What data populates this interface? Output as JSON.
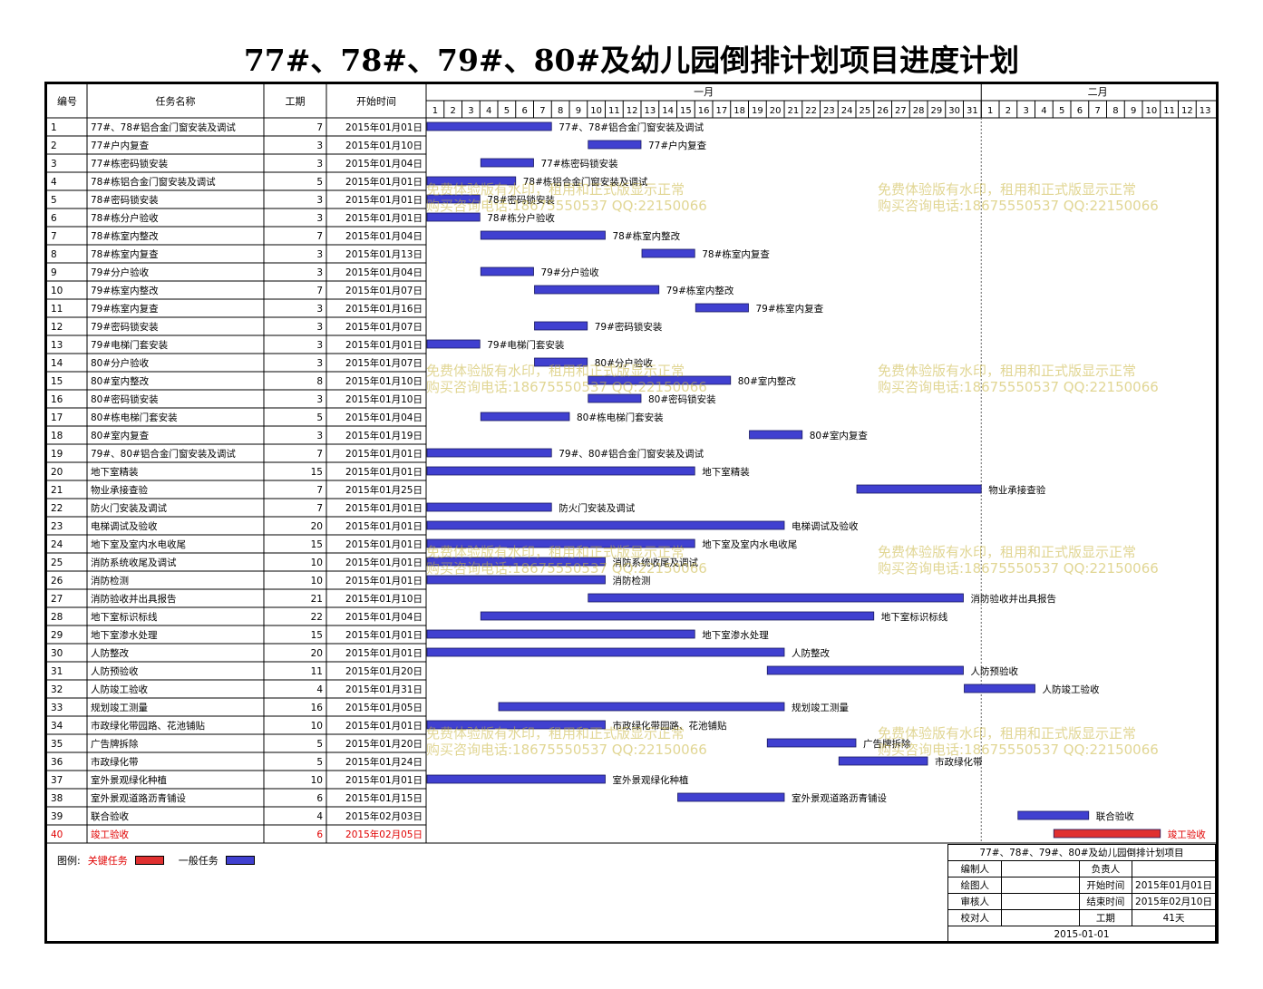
{
  "title": "77#、78#、79#、80#及幼儿园倒排计划项目进度计划",
  "header": {
    "col_id": "编号",
    "col_name": "任务名称",
    "col_dur": "工期",
    "col_start": "开始时间",
    "months": [
      "一月",
      "二月"
    ]
  },
  "legend": {
    "label": "图例:",
    "critical": "关键任务",
    "normal": "一般任务"
  },
  "colors": {
    "normal_bar": "#4040d0",
    "critical_bar": "#e03030",
    "critical_text": "#e00000"
  },
  "info": {
    "project": "77#、78#、79#、80#及幼儿园倒排计划项目",
    "editor_label": "编制人",
    "owner_label": "负责人",
    "drawer_label": "绘图人",
    "start_label": "开始时间",
    "start_value": "2015年01月01日",
    "reviewer_label": "审核人",
    "end_label": "结束时间",
    "end_value": "2015年02月10日",
    "checker_label": "校对人",
    "dur_label": "工期",
    "dur_value": "41天",
    "date": "2015-01-01"
  },
  "watermark": {
    "line1": "免费体验版有水印，租用和正式版显示正常",
    "line2": "购买咨询电话:18675550537 QQ:22150066"
  },
  "chart_data": {
    "type": "gantt",
    "x_axis": {
      "months": [
        {
          "name": "一月",
          "days": [
            1,
            2,
            3,
            4,
            5,
            6,
            7,
            8,
            9,
            10,
            11,
            12,
            13,
            14,
            15,
            16,
            17,
            18,
            19,
            20,
            21,
            22,
            23,
            24,
            25,
            26,
            27,
            28,
            29,
            30,
            31
          ]
        },
        {
          "name": "二月",
          "days": [
            1,
            2,
            3,
            4,
            5,
            6,
            7,
            8,
            9,
            10,
            11,
            12,
            13
          ]
        }
      ]
    },
    "tasks": [
      {
        "id": "1",
        "name": "77#、78#铝合金门窗安装及调试",
        "dur": 7,
        "start": "2015年01月01日",
        "day": 1,
        "critical": false
      },
      {
        "id": "2",
        "name": "77#户内复查",
        "dur": 3,
        "start": "2015年01月10日",
        "day": 10,
        "critical": false
      },
      {
        "id": "3",
        "name": "77#栋密码锁安装",
        "dur": 3,
        "start": "2015年01月04日",
        "day": 4,
        "critical": false
      },
      {
        "id": "4",
        "name": "78#栋铝合金门窗安装及调试",
        "dur": 5,
        "start": "2015年01月01日",
        "day": 1,
        "critical": false
      },
      {
        "id": "5",
        "name": "78#密码锁安装",
        "dur": 3,
        "start": "2015年01月01日",
        "day": 1,
        "critical": false
      },
      {
        "id": "6",
        "name": "78#栋分户验收",
        "dur": 3,
        "start": "2015年01月01日",
        "day": 1,
        "critical": false
      },
      {
        "id": "7",
        "name": "78#栋室内整改",
        "dur": 7,
        "start": "2015年01月04日",
        "day": 4,
        "critical": false
      },
      {
        "id": "8",
        "name": "78#栋室内复查",
        "dur": 3,
        "start": "2015年01月13日",
        "day": 13,
        "critical": false
      },
      {
        "id": "9",
        "name": "79#分户验收",
        "dur": 3,
        "start": "2015年01月04日",
        "day": 4,
        "critical": false
      },
      {
        "id": "10",
        "name": "79#栋室内整改",
        "dur": 7,
        "start": "2015年01月07日",
        "day": 7,
        "critical": false
      },
      {
        "id": "11",
        "name": "79#栋室内复查",
        "dur": 3,
        "start": "2015年01月16日",
        "day": 16,
        "critical": false
      },
      {
        "id": "12",
        "name": "79#密码锁安装",
        "dur": 3,
        "start": "2015年01月07日",
        "day": 7,
        "critical": false
      },
      {
        "id": "13",
        "name": "79#电梯门套安装",
        "dur": 3,
        "start": "2015年01月01日",
        "day": 1,
        "critical": false
      },
      {
        "id": "14",
        "name": "80#分户验收",
        "dur": 3,
        "start": "2015年01月07日",
        "day": 7,
        "critical": false
      },
      {
        "id": "15",
        "name": "80#室内整改",
        "dur": 8,
        "start": "2015年01月10日",
        "day": 10,
        "critical": false
      },
      {
        "id": "16",
        "name": "80#密码锁安装",
        "dur": 3,
        "start": "2015年01月10日",
        "day": 10,
        "critical": false
      },
      {
        "id": "17",
        "name": "80#栋电梯门套安装",
        "dur": 5,
        "start": "2015年01月04日",
        "day": 4,
        "critical": false
      },
      {
        "id": "18",
        "name": "80#室内复查",
        "dur": 3,
        "start": "2015年01月19日",
        "day": 19,
        "critical": false
      },
      {
        "id": "19",
        "name": "79#、80#铝合金门窗安装及调试",
        "dur": 7,
        "start": "2015年01月01日",
        "day": 1,
        "critical": false
      },
      {
        "id": "20",
        "name": "地下室精装",
        "dur": 15,
        "start": "2015年01月01日",
        "day": 1,
        "critical": false
      },
      {
        "id": "21",
        "name": "物业承接查验",
        "dur": 7,
        "start": "2015年01月25日",
        "day": 25,
        "critical": false
      },
      {
        "id": "22",
        "name": "防火门安装及调试",
        "dur": 7,
        "start": "2015年01月01日",
        "day": 1,
        "critical": false
      },
      {
        "id": "23",
        "name": "电梯调试及验收",
        "dur": 20,
        "start": "2015年01月01日",
        "day": 1,
        "critical": false
      },
      {
        "id": "24",
        "name": "地下室及室内水电收尾",
        "dur": 15,
        "start": "2015年01月01日",
        "day": 1,
        "critical": false
      },
      {
        "id": "25",
        "name": "消防系统收尾及调试",
        "dur": 10,
        "start": "2015年01月01日",
        "day": 1,
        "critical": false
      },
      {
        "id": "26",
        "name": "消防检测",
        "dur": 10,
        "start": "2015年01月01日",
        "day": 1,
        "critical": false
      },
      {
        "id": "27",
        "name": "消防验收并出具报告",
        "dur": 21,
        "start": "2015年01月10日",
        "day": 10,
        "critical": false
      },
      {
        "id": "28",
        "name": "地下室标识标线",
        "dur": 22,
        "start": "2015年01月04日",
        "day": 4,
        "critical": false
      },
      {
        "id": "29",
        "name": "地下室渗水处理",
        "dur": 15,
        "start": "2015年01月01日",
        "day": 1,
        "critical": false
      },
      {
        "id": "30",
        "name": "人防整改",
        "dur": 20,
        "start": "2015年01月01日",
        "day": 1,
        "critical": false
      },
      {
        "id": "31",
        "name": "人防预验收",
        "dur": 11,
        "start": "2015年01月20日",
        "day": 20,
        "critical": false
      },
      {
        "id": "32",
        "name": "人防竣工验收",
        "dur": 4,
        "start": "2015年01月31日",
        "day": 31,
        "critical": false
      },
      {
        "id": "33",
        "name": "规划竣工测量",
        "dur": 16,
        "start": "2015年01月05日",
        "day": 5,
        "critical": false
      },
      {
        "id": "34",
        "name": "市政绿化带园路、花池铺贴",
        "dur": 10,
        "start": "2015年01月01日",
        "day": 1,
        "critical": false
      },
      {
        "id": "35",
        "name": "广告牌拆除",
        "dur": 5,
        "start": "2015年01月20日",
        "day": 20,
        "critical": false
      },
      {
        "id": "36",
        "name": "市政绿化带",
        "dur": 5,
        "start": "2015年01月24日",
        "day": 24,
        "critical": false
      },
      {
        "id": "37",
        "name": "室外景观绿化种植",
        "dur": 10,
        "start": "2015年01月01日",
        "day": 1,
        "critical": false
      },
      {
        "id": "38",
        "name": "室外景观道路沥青铺设",
        "dur": 6,
        "start": "2015年01月15日",
        "day": 15,
        "critical": false
      },
      {
        "id": "39",
        "name": "联合验收",
        "dur": 4,
        "start": "2015年02月03日",
        "day": 34,
        "critical": false
      },
      {
        "id": "40",
        "name": "竣工验收",
        "dur": 6,
        "start": "2015年02月05日",
        "day": 36,
        "critical": true
      }
    ]
  }
}
